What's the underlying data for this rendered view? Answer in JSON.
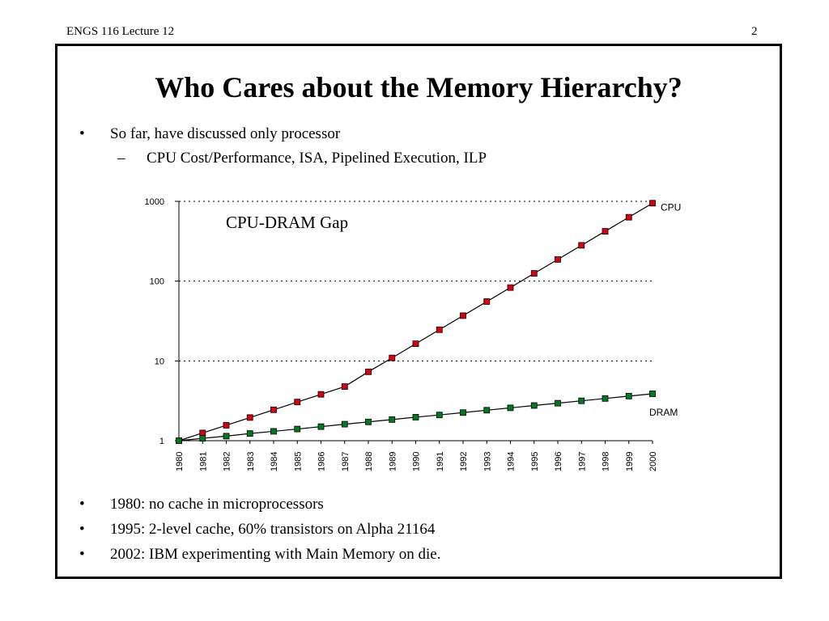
{
  "header": {
    "left": "ENGS 116  Lecture 12",
    "page_number": "2"
  },
  "slide": {
    "title": "Who Cares about the Memory Hierarchy?",
    "bullets_top": [
      {
        "text": "So far, have discussed only processor",
        "marker": "•"
      },
      {
        "text": "CPU Cost/Performance, ISA, Pipelined Execution, ILP",
        "marker": "–"
      }
    ],
    "bullets_bottom": [
      {
        "text": "1980: no cache in microprocessors",
        "marker": "•"
      },
      {
        "text": "1995: 2-level cache, 60% transistors on Alpha 21164",
        "marker": "•"
      },
      {
        "text": "2002: IBM experimenting with Main Memory on die.",
        "marker": "•"
      }
    ]
  },
  "chart_data": {
    "type": "line",
    "annotation": "CPU-DRAM Gap",
    "y_scale": "log",
    "ylim": [
      1,
      1000
    ],
    "y_ticks": [
      "1",
      "10",
      "100",
      "1000"
    ],
    "grid": "dotted horizontal at decades",
    "x": [
      1980,
      1981,
      1982,
      1983,
      1984,
      1985,
      1986,
      1987,
      1988,
      1989,
      1990,
      1991,
      1992,
      1993,
      1994,
      1995,
      1996,
      1997,
      1998,
      1999,
      2000
    ],
    "series": [
      {
        "name": "CPU",
        "color": "#d9000f",
        "values": [
          1,
          1.25,
          1.56,
          1.95,
          2.44,
          3.05,
          3.81,
          4.77,
          7.3,
          10.9,
          16.4,
          24.6,
          36.9,
          55.4,
          83,
          125,
          187,
          281,
          421,
          632,
          948
        ]
      },
      {
        "name": "DRAM",
        "color": "#007a1f",
        "values": [
          1,
          1.07,
          1.14,
          1.23,
          1.31,
          1.4,
          1.5,
          1.61,
          1.72,
          1.84,
          1.97,
          2.1,
          2.25,
          2.41,
          2.58,
          2.76,
          2.95,
          3.16,
          3.38,
          3.62,
          3.87
        ]
      }
    ]
  }
}
